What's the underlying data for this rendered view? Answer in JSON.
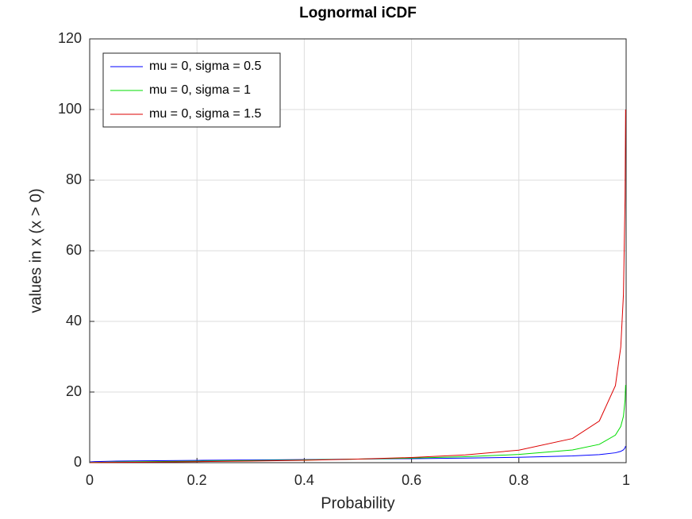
{
  "chart_data": {
    "type": "line",
    "title": "Lognormal iCDF",
    "x_label": "Probability",
    "y_label": "values in x (x > 0)",
    "x": [
      0.001,
      0.01,
      0.05,
      0.1,
      0.2,
      0.3,
      0.4,
      0.5,
      0.6,
      0.7,
      0.8,
      0.9,
      0.95,
      0.98,
      0.99,
      0.995,
      0.998,
      0.999
    ],
    "series": [
      {
        "name": "mu = 0, sigma = 0.5",
        "color": "#0000ff",
        "values": [
          0.213,
          0.312,
          0.439,
          0.527,
          0.657,
          0.769,
          0.881,
          1,
          1.135,
          1.3,
          1.523,
          1.898,
          2.277,
          2.795,
          3.201,
          3.625,
          4.214,
          4.7
        ]
      },
      {
        "name": "mu = 0, sigma = 1",
        "color": "#00dd00",
        "values": [
          0.0455,
          0.0977,
          0.193,
          0.278,
          0.431,
          0.592,
          0.776,
          1,
          1.288,
          1.69,
          2.32,
          3.602,
          5.181,
          7.8,
          10.24,
          13.14,
          17.78,
          22
        ]
      },
      {
        "name": "mu = 0, sigma = 1.5",
        "color": "#dd0000",
        "values": [
          0.0097,
          0.0305,
          0.0848,
          0.146,
          0.283,
          0.455,
          0.684,
          1,
          1.462,
          2.196,
          3.533,
          6.838,
          11.8,
          21.8,
          32.7,
          47.7,
          74.9,
          100
        ]
      }
    ],
    "xlim": [
      0,
      1
    ],
    "xticks": [
      0,
      0.2,
      0.4,
      0.6,
      0.8,
      1
    ],
    "ylim": [
      0,
      120
    ],
    "yticks": [
      0,
      20,
      40,
      60,
      80,
      100,
      120
    ],
    "grid": true,
    "legend": "northwest"
  }
}
